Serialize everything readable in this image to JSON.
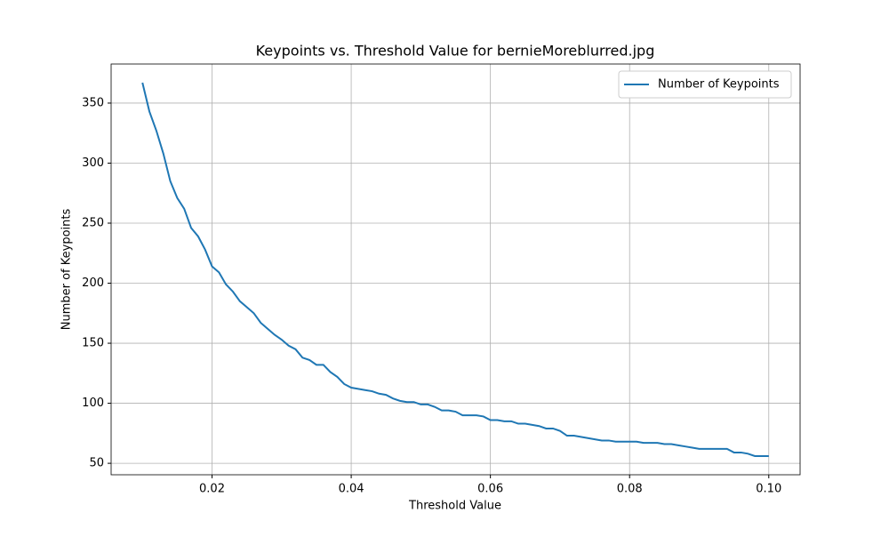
{
  "chart_data": {
    "type": "line",
    "title": "Keypoints vs. Threshold Value for bernieMoreblurred.jpg",
    "x_label": "Threshold Value",
    "y_label": "Number of Keypoints",
    "x": [
      0.01,
      0.011,
      0.012,
      0.013,
      0.014,
      0.015,
      0.016,
      0.017,
      0.018,
      0.019,
      0.02,
      0.021,
      0.022,
      0.023,
      0.024,
      0.025,
      0.026,
      0.027,
      0.028,
      0.029,
      0.03,
      0.031,
      0.032,
      0.033,
      0.034,
      0.035,
      0.036,
      0.037,
      0.038,
      0.039,
      0.04,
      0.041,
      0.042,
      0.043,
      0.044,
      0.045,
      0.046,
      0.047,
      0.048,
      0.049,
      0.05,
      0.051,
      0.052,
      0.053,
      0.054,
      0.055,
      0.056,
      0.057,
      0.058,
      0.059,
      0.06,
      0.061,
      0.062,
      0.063,
      0.064,
      0.065,
      0.066,
      0.067,
      0.068,
      0.069,
      0.07,
      0.071,
      0.072,
      0.073,
      0.074,
      0.075,
      0.076,
      0.077,
      0.078,
      0.079,
      0.08,
      0.081,
      0.082,
      0.083,
      0.084,
      0.085,
      0.086,
      0.087,
      0.088,
      0.089,
      0.09,
      0.091,
      0.092,
      0.093,
      0.094,
      0.095,
      0.096,
      0.097,
      0.098,
      0.099,
      0.1
    ],
    "series": [
      {
        "name": "Number of Keypoints",
        "color": "#1f77b4",
        "values": [
          367,
          343,
          327,
          308,
          285,
          271,
          262,
          246,
          239,
          228,
          214,
          209,
          199,
          193,
          185,
          180,
          175,
          167,
          162,
          157,
          153,
          148,
          145,
          138,
          136,
          132,
          132,
          126,
          122,
          116,
          113,
          112,
          111,
          110,
          108,
          107,
          104,
          102,
          101,
          101,
          99,
          99,
          97,
          94,
          94,
          93,
          90,
          90,
          90,
          89,
          86,
          86,
          85,
          85,
          83,
          83,
          82,
          81,
          79,
          79,
          77,
          73,
          73,
          72,
          71,
          70,
          69,
          69,
          68,
          68,
          68,
          68,
          67,
          67,
          67,
          66,
          66,
          65,
          64,
          63,
          62,
          62,
          62,
          62,
          62,
          59,
          59,
          58,
          56,
          56,
          56
        ]
      }
    ],
    "xlim": [
      0.0055,
      0.1045
    ],
    "xticks": [
      0.02,
      0.04,
      0.06,
      0.08,
      {
        "value": 0.1,
        "label": "0.10"
      }
    ],
    "ylim": [
      40.45,
      382.55
    ],
    "yticks": [
      50,
      100,
      150,
      200,
      250,
      300,
      350
    ],
    "grid": true,
    "legend": "upper-right"
  }
}
